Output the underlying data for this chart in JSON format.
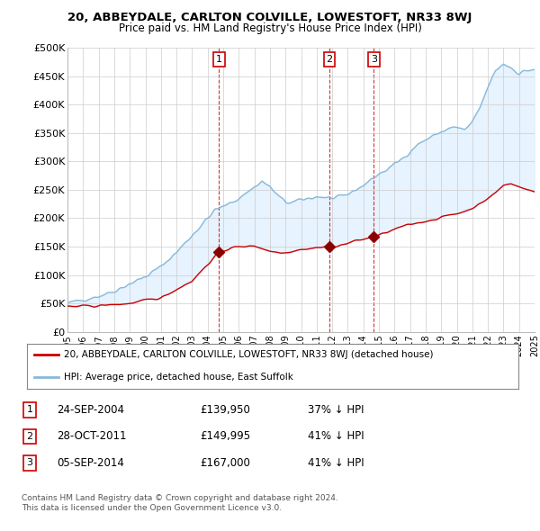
{
  "title": "20, ABBEYDALE, CARLTON COLVILLE, LOWESTOFT, NR33 8WJ",
  "subtitle": "Price paid vs. HM Land Registry's House Price Index (HPI)",
  "ylim": [
    0,
    500000
  ],
  "yticks": [
    0,
    50000,
    100000,
    150000,
    200000,
    250000,
    300000,
    350000,
    400000,
    450000,
    500000
  ],
  "ytick_labels": [
    "£0",
    "£50K",
    "£100K",
    "£150K",
    "£200K",
    "£250K",
    "£300K",
    "£350K",
    "£400K",
    "£450K",
    "£500K"
  ],
  "background_color": "#ffffff",
  "plot_bg_color": "#ffffff",
  "grid_color": "#cccccc",
  "sale_color": "#cc0000",
  "hpi_color": "#87b8d8",
  "fill_color": "#ddeeff",
  "sale_label": "20, ABBEYDALE, CARLTON COLVILLE, LOWESTOFT, NR33 8WJ (detached house)",
  "hpi_label": "HPI: Average price, detached house, East Suffolk",
  "transactions": [
    {
      "num": 1,
      "date": "24-SEP-2004",
      "price": 139950,
      "pct": "37%",
      "x": 2004.73
    },
    {
      "num": 2,
      "date": "28-OCT-2011",
      "price": 149995,
      "pct": "41%",
      "x": 2011.82
    },
    {
      "num": 3,
      "date": "05-SEP-2014",
      "price": 167000,
      "pct": "41%",
      "x": 2014.68
    }
  ],
  "table_rows": [
    [
      "1",
      "24-SEP-2004",
      "£139,950",
      "37% ↓ HPI"
    ],
    [
      "2",
      "28-OCT-2011",
      "£149,995",
      "41% ↓ HPI"
    ],
    [
      "3",
      "05-SEP-2014",
      "£167,000",
      "41% ↓ HPI"
    ]
  ],
  "footnote1": "Contains HM Land Registry data © Crown copyright and database right 2024.",
  "footnote2": "This data is licensed under the Open Government Licence v3.0.",
  "xmin": 1995,
  "xmax": 2025,
  "xticks": [
    1995,
    1996,
    1997,
    1998,
    1999,
    2000,
    2001,
    2002,
    2003,
    2004,
    2005,
    2006,
    2007,
    2008,
    2009,
    2010,
    2011,
    2012,
    2013,
    2014,
    2015,
    2016,
    2017,
    2018,
    2019,
    2020,
    2021,
    2022,
    2023,
    2024,
    2025
  ]
}
